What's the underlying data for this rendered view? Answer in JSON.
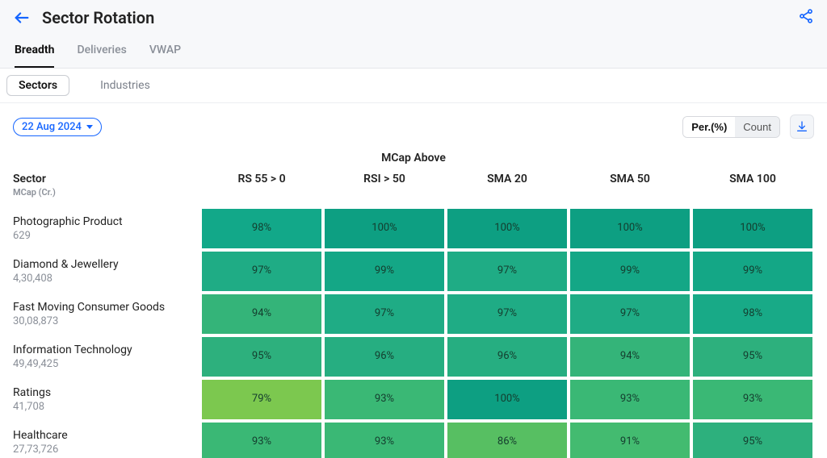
{
  "header": {
    "title": "Sector Rotation"
  },
  "tabs_primary": [
    "Breadth",
    "Deliveries",
    "VWAP"
  ],
  "tabs_primary_active": 0,
  "tabs_secondary": [
    "Sectors",
    "Industries"
  ],
  "tabs_secondary_active": 0,
  "date_selected": "22 Aug 2024",
  "view_toggle": {
    "options": [
      "Per.(%)",
      "Count"
    ],
    "active": 0
  },
  "table": {
    "super_header": "MCap Above",
    "row_header": {
      "title": "Sector",
      "subtitle": "MCap (Cr.)"
    },
    "columns": [
      "RS 55 > 0",
      "RSI > 50",
      "SMA 20",
      "SMA 50",
      "SMA 100"
    ],
    "rows": [
      {
        "name": "Photographic Product",
        "mcap": "629",
        "cells": [
          {
            "v": "98%",
            "c": "#12a889"
          },
          {
            "v": "100%",
            "c": "#0d9f82"
          },
          {
            "v": "100%",
            "c": "#0d9f82"
          },
          {
            "v": "100%",
            "c": "#0d9f82"
          },
          {
            "v": "100%",
            "c": "#0d9f82"
          }
        ]
      },
      {
        "name": "Diamond & Jewellery",
        "mcap": "4,30,408",
        "cells": [
          {
            "v": "97%",
            "c": "#1fac85"
          },
          {
            "v": "99%",
            "c": "#14a786"
          },
          {
            "v": "97%",
            "c": "#1fac85"
          },
          {
            "v": "99%",
            "c": "#14a786"
          },
          {
            "v": "99%",
            "c": "#14a786"
          }
        ]
      },
      {
        "name": "Fast Moving Consumer Goods",
        "mcap": "30,08,873",
        "cells": [
          {
            "v": "94%",
            "c": "#34b479"
          },
          {
            "v": "97%",
            "c": "#1fac85"
          },
          {
            "v": "97%",
            "c": "#1fac85"
          },
          {
            "v": "97%",
            "c": "#1fac85"
          },
          {
            "v": "98%",
            "c": "#18aa87"
          }
        ]
      },
      {
        "name": "Information Technology",
        "mcap": "49,49,425",
        "cells": [
          {
            "v": "95%",
            "c": "#2db07d"
          },
          {
            "v": "96%",
            "c": "#26ae81"
          },
          {
            "v": "96%",
            "c": "#26ae81"
          },
          {
            "v": "94%",
            "c": "#34b479"
          },
          {
            "v": "95%",
            "c": "#2db07d"
          }
        ]
      },
      {
        "name": "Ratings",
        "mcap": "41,708",
        "cells": [
          {
            "v": "79%",
            "c": "#7cc84f"
          },
          {
            "v": "93%",
            "c": "#3ab875"
          },
          {
            "v": "100%",
            "c": "#0d9f82"
          },
          {
            "v": "93%",
            "c": "#3ab875"
          },
          {
            "v": "93%",
            "c": "#3ab875"
          }
        ]
      },
      {
        "name": "Healthcare",
        "mcap": "27,73,726",
        "cells": [
          {
            "v": "93%",
            "c": "#3ab875"
          },
          {
            "v": "93%",
            "c": "#3ab875"
          },
          {
            "v": "86%",
            "c": "#57bf62"
          },
          {
            "v": "91%",
            "c": "#43bb70"
          },
          {
            "v": "95%",
            "c": "#2db07d"
          }
        ]
      }
    ]
  },
  "colors": {
    "accent": "#1565ff"
  }
}
